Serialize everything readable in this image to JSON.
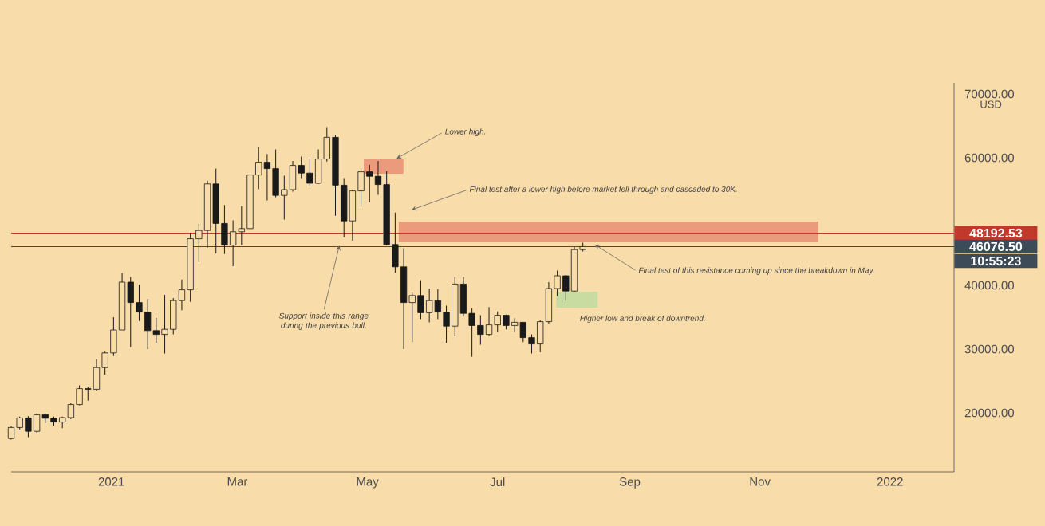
{
  "chart_data": {
    "type": "candlestick",
    "ylabel": "USD",
    "color": "#1a1a1a",
    "x": [
      "2020-11-15",
      "2020-11-19",
      "2020-11-23",
      "2020-11-27",
      "2020-12-01",
      "2020-12-05",
      "2020-12-09",
      "2020-12-13",
      "2020-12-17",
      "2020-12-21",
      "2020-12-25",
      "2020-12-29",
      "2021-01-02",
      "2021-01-06",
      "2021-01-10",
      "2021-01-14",
      "2021-01-18",
      "2021-01-22",
      "2021-01-26",
      "2021-01-30",
      "2021-02-03",
      "2021-02-07",
      "2021-02-11",
      "2021-02-15",
      "2021-02-19",
      "2021-02-23",
      "2021-02-27",
      "2021-03-03",
      "2021-03-07",
      "2021-03-11",
      "2021-03-15",
      "2021-03-19",
      "2021-03-23",
      "2021-03-27",
      "2021-03-31",
      "2021-04-04",
      "2021-04-08",
      "2021-04-12",
      "2021-04-16",
      "2021-04-20",
      "2021-04-24",
      "2021-04-28",
      "2021-05-02",
      "2021-05-06",
      "2021-05-10",
      "2021-05-14",
      "2021-05-18",
      "2021-05-22",
      "2021-05-26",
      "2021-05-30",
      "2021-06-03",
      "2021-06-07",
      "2021-06-11",
      "2021-06-15",
      "2021-06-19",
      "2021-06-23",
      "2021-06-27",
      "2021-07-01",
      "2021-07-05",
      "2021-07-09",
      "2021-07-13",
      "2021-07-17",
      "2021-07-21",
      "2021-07-25",
      "2021-07-29",
      "2021-08-02",
      "2021-08-06",
      "2021-08-10"
    ],
    "ohlc": [
      [
        15970,
        17900,
        15800,
        17700
      ],
      [
        17700,
        19400,
        17400,
        19200
      ],
      [
        19200,
        19480,
        16200,
        17100
      ],
      [
        17100,
        19900,
        16900,
        19700
      ],
      [
        19700,
        19900,
        18400,
        19150
      ],
      [
        19150,
        19400,
        18000,
        18550
      ],
      [
        18550,
        19400,
        17600,
        19250
      ],
      [
        19250,
        21500,
        19000,
        21300
      ],
      [
        21300,
        24300,
        21200,
        23800
      ],
      [
        23800,
        24100,
        21900,
        23700
      ],
      [
        23700,
        28400,
        23500,
        27100
      ],
      [
        27100,
        29600,
        26000,
        29400
      ],
      [
        29400,
        35000,
        28900,
        33000
      ],
      [
        33000,
        41900,
        33000,
        40500
      ],
      [
        40500,
        41300,
        30300,
        37300
      ],
      [
        37300,
        40100,
        34400,
        35800
      ],
      [
        35800,
        37800,
        30000,
        32900
      ],
      [
        32900,
        34900,
        31000,
        32300
      ],
      [
        32300,
        38500,
        29300,
        33100
      ],
      [
        33100,
        38000,
        32300,
        37600
      ],
      [
        37600,
        40900,
        36100,
        39300
      ],
      [
        39300,
        48200,
        37400,
        47300
      ],
      [
        47300,
        49700,
        43700,
        48600
      ],
      [
        48600,
        56400,
        45900,
        55900
      ],
      [
        55900,
        58300,
        45000,
        49700
      ],
      [
        49700,
        52600,
        44900,
        46300
      ],
      [
        46300,
        50200,
        43000,
        48400
      ],
      [
        48400,
        52400,
        46300,
        48900
      ],
      [
        48900,
        57400,
        48800,
        57300
      ],
      [
        57300,
        61700,
        55100,
        59300
      ],
      [
        59300,
        60600,
        53300,
        58300
      ],
      [
        58300,
        61300,
        53800,
        54100
      ],
      [
        54100,
        57200,
        50300,
        55000
      ],
      [
        55000,
        59500,
        54700,
        58800
      ],
      [
        58800,
        60200,
        56800,
        57600
      ],
      [
        57600,
        59900,
        55500,
        56000
      ],
      [
        56000,
        61300,
        55900,
        59800
      ],
      [
        59800,
        64800,
        59400,
        63200
      ],
      [
        63200,
        63500,
        50900,
        55700
      ],
      [
        55700,
        56800,
        47500,
        50100
      ],
      [
        50100,
        55000,
        47000,
        54800
      ],
      [
        54800,
        58400,
        52300,
        57800
      ],
      [
        57800,
        58900,
        53000,
        57100
      ],
      [
        57100,
        59500,
        54200,
        55800
      ],
      [
        55800,
        57900,
        46300,
        46400
      ],
      [
        46400,
        51400,
        42000,
        42900
      ],
      [
        42900,
        45800,
        30000,
        37300
      ],
      [
        37300,
        38800,
        31100,
        38400
      ],
      [
        38400,
        40800,
        34700,
        35700
      ],
      [
        35700,
        39500,
        34200,
        37600
      ],
      [
        37600,
        39400,
        34700,
        35800
      ],
      [
        35800,
        36800,
        31000,
        33600
      ],
      [
        33600,
        41300,
        32000,
        40200
      ],
      [
        40200,
        41300,
        35100,
        35600
      ],
      [
        35600,
        36400,
        28800,
        33700
      ],
      [
        33700,
        35300,
        30700,
        32300
      ],
      [
        32300,
        36600,
        32000,
        33800
      ],
      [
        33800,
        35900,
        32700,
        35300
      ],
      [
        35300,
        35400,
        33100,
        33700
      ],
      [
        33700,
        34800,
        32700,
        34200
      ],
      [
        34200,
        34200,
        31100,
        31800
      ],
      [
        31800,
        32300,
        29300,
        30800
      ],
      [
        30800,
        34500,
        29500,
        34300
      ],
      [
        34300,
        40500,
        34000,
        39500
      ],
      [
        39500,
        42300,
        38300,
        41500
      ],
      [
        41500,
        41600,
        37600,
        39100
      ],
      [
        39100,
        46000,
        39000,
        45600
      ],
      [
        45600,
        46700,
        45300,
        46076.5
      ]
    ],
    "xlim": [
      "2020-11-15",
      "2022-01-31"
    ],
    "xticks": [
      {
        "value": "2021-01-01",
        "label": "2021"
      },
      {
        "value": "2021-03-01",
        "label": "Mar"
      },
      {
        "value": "2021-05-01",
        "label": "May"
      },
      {
        "value": "2021-07-01",
        "label": "Jul"
      },
      {
        "value": "2021-09-01",
        "label": "Sep"
      },
      {
        "value": "2021-11-01",
        "label": "Nov"
      },
      {
        "value": "2022-01-01",
        "label": "2022"
      }
    ],
    "ylim": [
      10750,
      71750
    ],
    "yticks": [
      {
        "value": 20000,
        "label": "20000.00"
      },
      {
        "value": 30000,
        "label": "30000.00"
      },
      {
        "value": 40000,
        "label": "40000.00"
      },
      {
        "value": 60000,
        "label": "60000.00"
      },
      {
        "value": 70000,
        "label": "70000.00"
      }
    ],
    "ref_lines": [
      {
        "axis": "y",
        "value": 48192.53,
        "label": "48192.53",
        "color": "#c0392b"
      },
      {
        "axis": "y",
        "value": 46076.5,
        "label": "46076.50",
        "color": "#3d4a57"
      }
    ],
    "bands": [
      {
        "axis": "y",
        "from": 57500,
        "to": 59750,
        "color": "#eb9a7c"
      },
      {
        "axis": "y",
        "from": 46750,
        "to": 50000,
        "color": "#eb9a7c"
      },
      {
        "axis": "y",
        "from": 36500,
        "to": 39000,
        "color": "#c8dba0"
      }
    ],
    "annotations": [
      {
        "text": "Lower high.",
        "x": "2021-05-14",
        "y": 59750
      },
      "Final test after a lower high before market fell through and cascaded to 30K.",
      {
        "text": "Support inside this range during the previous bull.",
        "x": "2021-04-18",
        "y": 46500
      },
      {
        "text": "Final test of this resistance coming up since the breakdown in May.",
        "x": "2021-08-15",
        "y": 46500
      },
      "Higher low and break of downtrend.",
      "10:55:23"
    ]
  }
}
